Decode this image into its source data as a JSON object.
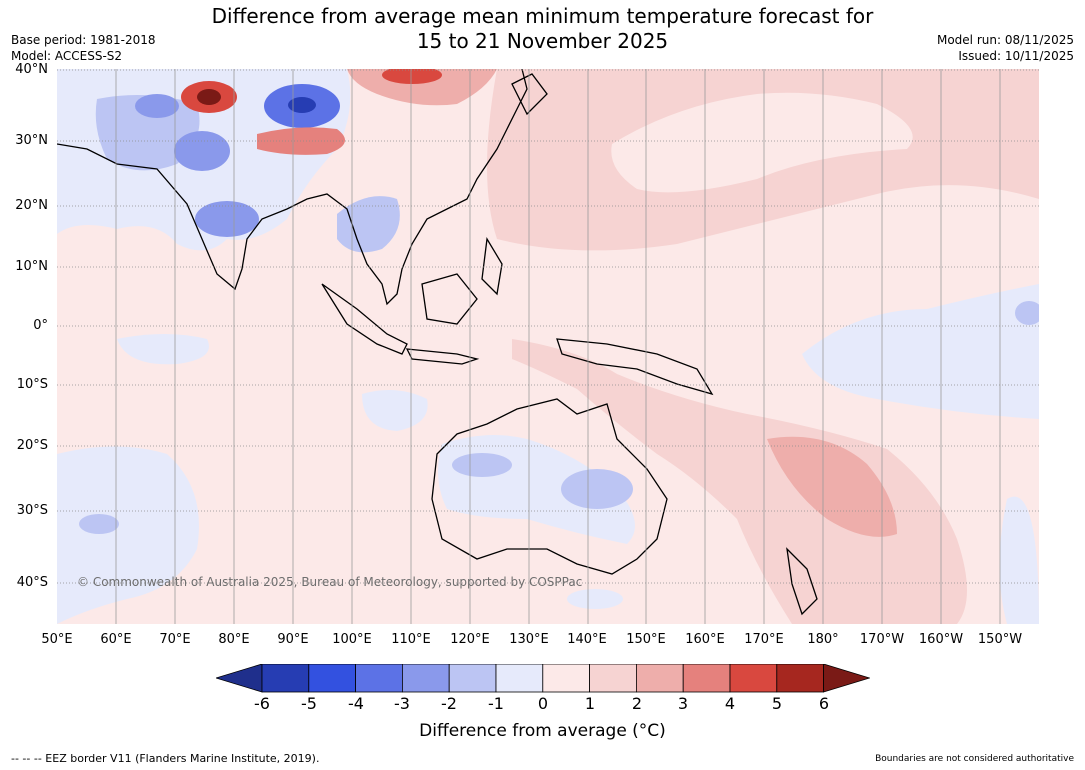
{
  "title_line1": "Difference from average mean minimum temperature forecast for",
  "title_line2": "15 to 21 November 2025",
  "meta_left": {
    "base_period": "Base period: 1981-2018",
    "model": "Model: ACCESS-S2"
  },
  "meta_right": {
    "model_run": "Model run: 08/11/2025",
    "issued": "Issued: 10/11/2025"
  },
  "latitude_labels": [
    "40°N",
    "30°N",
    "20°N",
    "10°N",
    "0°",
    "10°S",
    "20°S",
    "30°S",
    "40°S"
  ],
  "longitude_labels": [
    "50°E",
    "60°E",
    "70°E",
    "80°E",
    "90°E",
    "100°E",
    "110°E",
    "120°E",
    "130°E",
    "140°E",
    "150°E",
    "160°E",
    "170°E",
    "180°",
    "170°W",
    "160°W",
    "150°W"
  ],
  "copyright": "© Commonwealth of Australia 2025, Bureau of Meteorology, supported by COSPPac",
  "colorbar": {
    "ticks": [
      "-6",
      "-5",
      "-4",
      "-3",
      "-2",
      "-1",
      "0",
      "1",
      "2",
      "3",
      "4",
      "5",
      "6"
    ],
    "label": "Difference from average (°C)",
    "colors": [
      "#1f2f8c",
      "#263db3",
      "#3351e0",
      "#5c72e6",
      "#8a99eb",
      "#bcc5f3",
      "#e6eafb",
      "#fce9e8",
      "#f6d3d2",
      "#eeaeab",
      "#e5817d",
      "#d9483f",
      "#a6271f",
      "#7a1a16"
    ]
  },
  "footer_left": "--  --  -- EEZ border V11 (Flanders Marine Institute, 2019).",
  "footer_right": "Boundaries are not considered authoritative"
}
